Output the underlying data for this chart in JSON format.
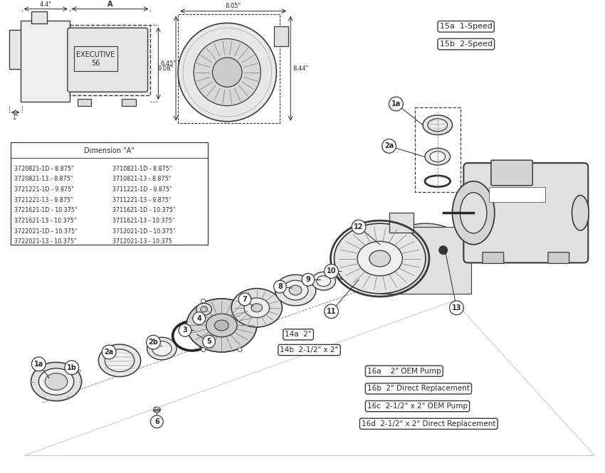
{
  "bg_color": "#f5f5f5",
  "line_color": "#3a3a3a",
  "mid_gray": "#888888",
  "dark_gray": "#2a2a2a",
  "light_gray": "#cccccc",
  "dimension_table_title": "Dimension \"A\"",
  "dimension_rows_left": [
    "3720821-1D - 8.875\"",
    "3720821-13 - 8.875\"",
    "3721221-1D - 9.875\"",
    "3721221-13 - 9.875\"",
    "3721621-1D - 10.375\"",
    "3721621-13 - 10.375\"",
    "3722021-1D - 10.375\"",
    "3722021-13 - 10.375\""
  ],
  "dimension_rows_right": [
    "3710821-1D - 8.875\"",
    "3710821-13 - 8.875\"",
    "3711221-1D - 9.875\"",
    "3711221-13 - 9.875\"",
    "3711621-1D - 10.375\"",
    "3711621-13 - 10.375\"",
    "3712021-1D - 10.375\"",
    "3712021-13 - 10.375"
  ]
}
